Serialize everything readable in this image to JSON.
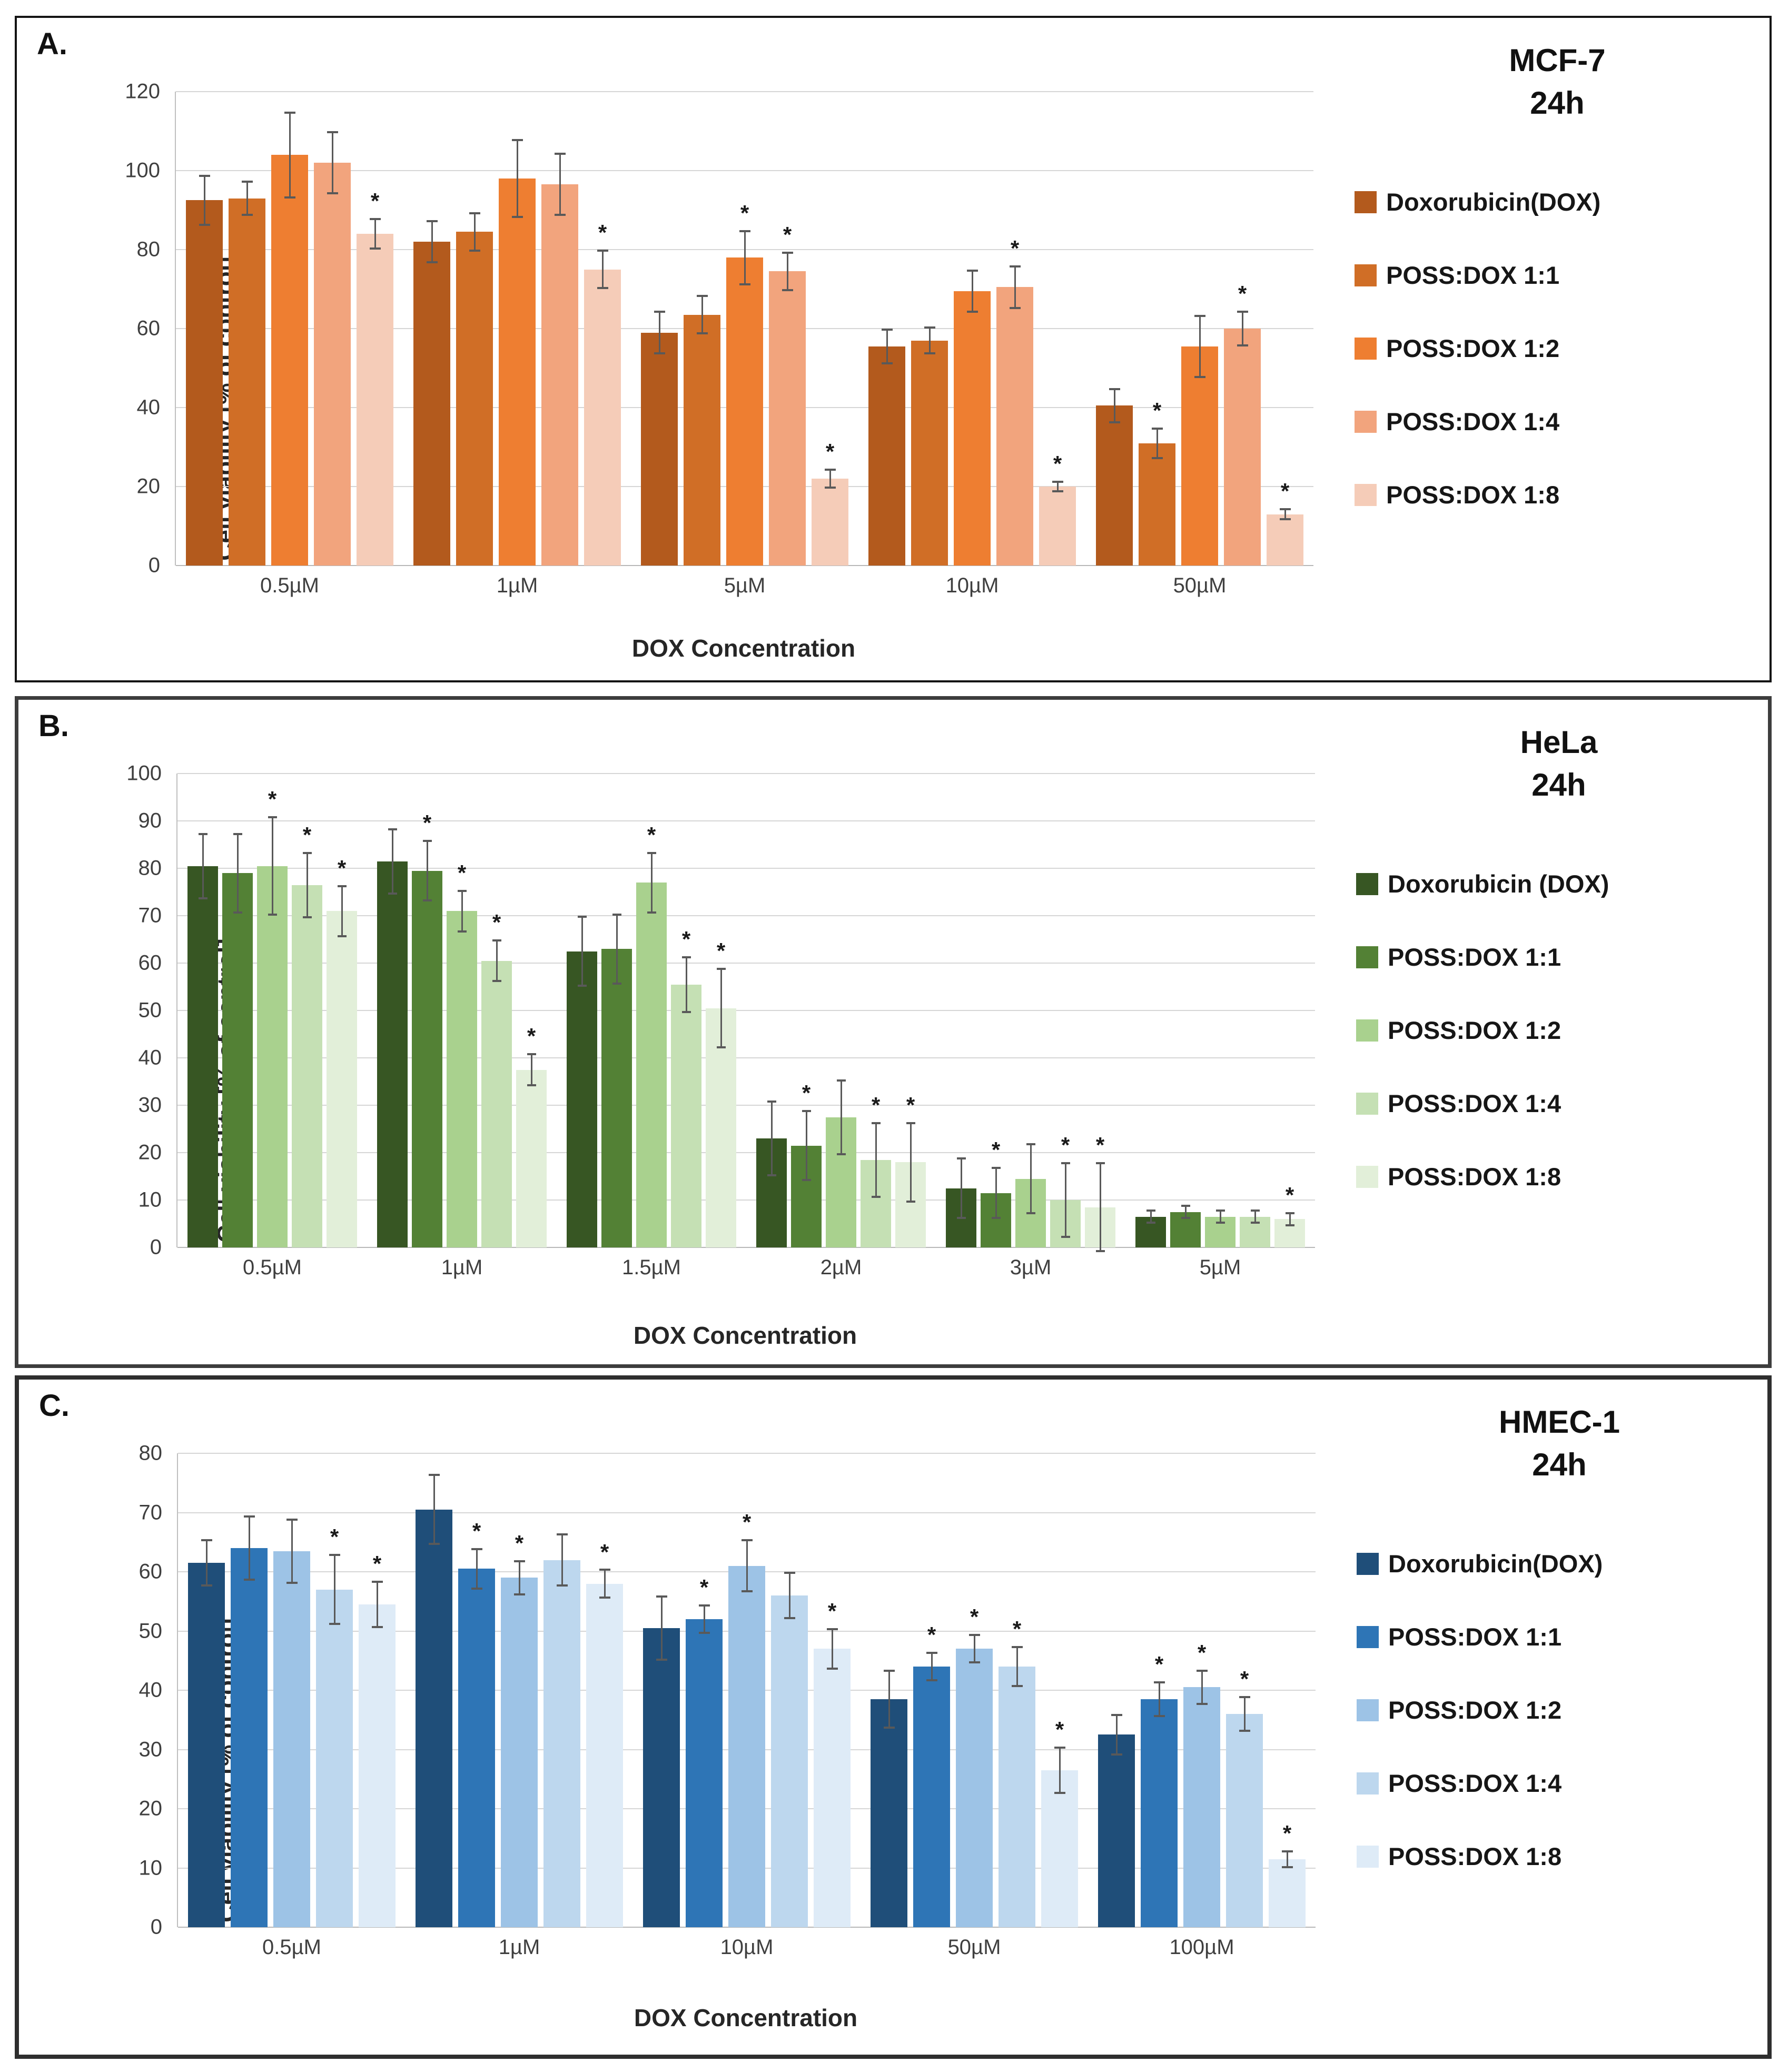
{
  "figure": {
    "xlabel": "DOX Concentration",
    "ylabel": "Cell viability [% of control]",
    "error_bar_color": "#595959",
    "gridline_color": "#d6d6d6",
    "significance_marker": "*"
  },
  "chart_data": [
    {
      "type": "bar",
      "panel_letter": "A.",
      "cell_line": "MCF-7",
      "time": "24h",
      "title": "MCF-7 24h",
      "xlabel": "DOX Concentration",
      "ylabel": "Cell viability [% of control]",
      "ylim": [
        0,
        120
      ],
      "ytick_step": 20,
      "grid": true,
      "legend_position": "right",
      "categories": [
        "0.5µM",
        "1µM",
        "5µM",
        "10µM",
        "50µM"
      ],
      "series": [
        {
          "name": "Doxorubicin(DOX)",
          "color": "#b35a1d",
          "values": [
            92.5,
            82,
            59,
            55.5,
            40.5
          ],
          "errors": [
            6.5,
            5.5,
            5.5,
            4.5,
            4.5
          ],
          "sig": [
            false,
            false,
            false,
            false,
            false
          ]
        },
        {
          "name": "POSS:DOX 1:1",
          "color": "#d06e26",
          "values": [
            93,
            84.5,
            63.5,
            57,
            31
          ],
          "errors": [
            4.5,
            5,
            5,
            3.5,
            4
          ],
          "sig": [
            false,
            false,
            false,
            false,
            true
          ]
        },
        {
          "name": "POSS:DOX 1:2",
          "color": "#ee7e31",
          "values": [
            104,
            98,
            78,
            69.5,
            55.5
          ],
          "errors": [
            11,
            10,
            7,
            5.5,
            8
          ],
          "sig": [
            false,
            false,
            true,
            false,
            false
          ]
        },
        {
          "name": "POSS:DOX 1:4",
          "color": "#f2a47d",
          "values": [
            102,
            96.5,
            74.5,
            70.5,
            60
          ],
          "errors": [
            8,
            8,
            5,
            5.5,
            4.5
          ],
          "sig": [
            false,
            false,
            true,
            true,
            true
          ]
        },
        {
          "name": "POSS:DOX 1:8",
          "color": "#f5ccb8",
          "values": [
            84,
            75,
            22,
            20,
            13
          ],
          "errors": [
            4,
            5,
            2.5,
            1.5,
            1.5
          ],
          "sig": [
            true,
            true,
            true,
            true,
            true
          ]
        }
      ]
    },
    {
      "type": "bar",
      "panel_letter": "B.",
      "cell_line": "HeLa",
      "time": "24h",
      "title": "HeLa 24h",
      "xlabel": "DOX Concentration",
      "ylabel": "Cell viability [% of control]",
      "ylim": [
        0,
        100
      ],
      "ytick_step": 10,
      "grid": true,
      "legend_position": "right",
      "categories": [
        "0.5µM",
        "1µM",
        "1.5µM",
        "2µM",
        "3µM",
        "5µM"
      ],
      "series": [
        {
          "name": "Doxorubicin (DOX)",
          "color": "#375623",
          "values": [
            80.5,
            81.5,
            62.5,
            23,
            12.5,
            6.5
          ],
          "errors": [
            7,
            7,
            7.5,
            8,
            6.5,
            1.5
          ],
          "sig": [
            false,
            false,
            false,
            false,
            false,
            false
          ]
        },
        {
          "name": "POSS:DOX 1:1",
          "color": "#538135",
          "values": [
            79,
            79.5,
            63,
            21.5,
            11.5,
            7.5
          ],
          "errors": [
            8.5,
            6.5,
            7.5,
            7.5,
            5.5,
            1.5
          ],
          "sig": [
            false,
            true,
            false,
            true,
            true,
            false
          ]
        },
        {
          "name": "POSS:DOX 1:2",
          "color": "#a9d18e",
          "values": [
            80.5,
            71,
            77,
            27.5,
            14.5,
            6.5
          ],
          "errors": [
            10.5,
            4.5,
            6.5,
            8,
            7.5,
            1.5
          ],
          "sig": [
            true,
            true,
            true,
            false,
            false,
            false
          ]
        },
        {
          "name": "POSS:DOX 1:4",
          "color": "#c5e0b4",
          "values": [
            76.5,
            60.5,
            55.5,
            18.5,
            10,
            6.5
          ],
          "errors": [
            7,
            4.5,
            6,
            8,
            8,
            1.5
          ],
          "sig": [
            true,
            true,
            true,
            true,
            true,
            false
          ]
        },
        {
          "name": "POSS:DOX 1:8",
          "color": "#e2efd9",
          "values": [
            71,
            37.5,
            50.5,
            18,
            8.5,
            6
          ],
          "errors": [
            5.5,
            3.5,
            8.5,
            8.5,
            9.5,
            1.5
          ],
          "sig": [
            true,
            true,
            true,
            true,
            true,
            true
          ]
        }
      ]
    },
    {
      "type": "bar",
      "panel_letter": "C.",
      "cell_line": "HMEC-1",
      "time": "24h",
      "title": "HMEC-1 24h",
      "xlabel": "DOX Concentration",
      "ylabel": "Cell viability [% of control]",
      "ylim": [
        0,
        80
      ],
      "ytick_step": 10,
      "grid": true,
      "legend_position": "right",
      "categories": [
        "0.5µM",
        "1µM",
        "10µM",
        "50µM",
        "100µM"
      ],
      "series": [
        {
          "name": "Doxorubicin(DOX)",
          "color": "#1f4e79",
          "values": [
            61.5,
            70.5,
            50.5,
            38.5,
            32.5
          ],
          "errors": [
            4,
            6,
            5.5,
            5,
            3.5
          ],
          "sig": [
            false,
            false,
            false,
            false,
            false
          ]
        },
        {
          "name": "POSS:DOX 1:1",
          "color": "#2e75b6",
          "values": [
            64,
            60.5,
            52,
            44,
            38.5
          ],
          "errors": [
            5.5,
            3.5,
            2.5,
            2.5,
            3
          ],
          "sig": [
            false,
            true,
            true,
            true,
            true
          ]
        },
        {
          "name": "POSS:DOX 1:2",
          "color": "#9dc3e6",
          "values": [
            63.5,
            59,
            61,
            47,
            40.5
          ],
          "errors": [
            5.5,
            3,
            4.5,
            2.5,
            3
          ],
          "sig": [
            false,
            true,
            true,
            true,
            true
          ]
        },
        {
          "name": "POSS:DOX 1:4",
          "color": "#bdd7ee",
          "values": [
            57,
            62,
            56,
            44,
            36
          ],
          "errors": [
            6,
            4.5,
            4,
            3.5,
            3
          ],
          "sig": [
            true,
            false,
            false,
            true,
            true
          ]
        },
        {
          "name": "POSS:DOX 1:8",
          "color": "#deebf7",
          "values": [
            54.5,
            58,
            47,
            26.5,
            11.5
          ],
          "errors": [
            4,
            2.5,
            3.5,
            4,
            1.5
          ],
          "sig": [
            true,
            true,
            true,
            true,
            true
          ]
        }
      ]
    }
  ]
}
